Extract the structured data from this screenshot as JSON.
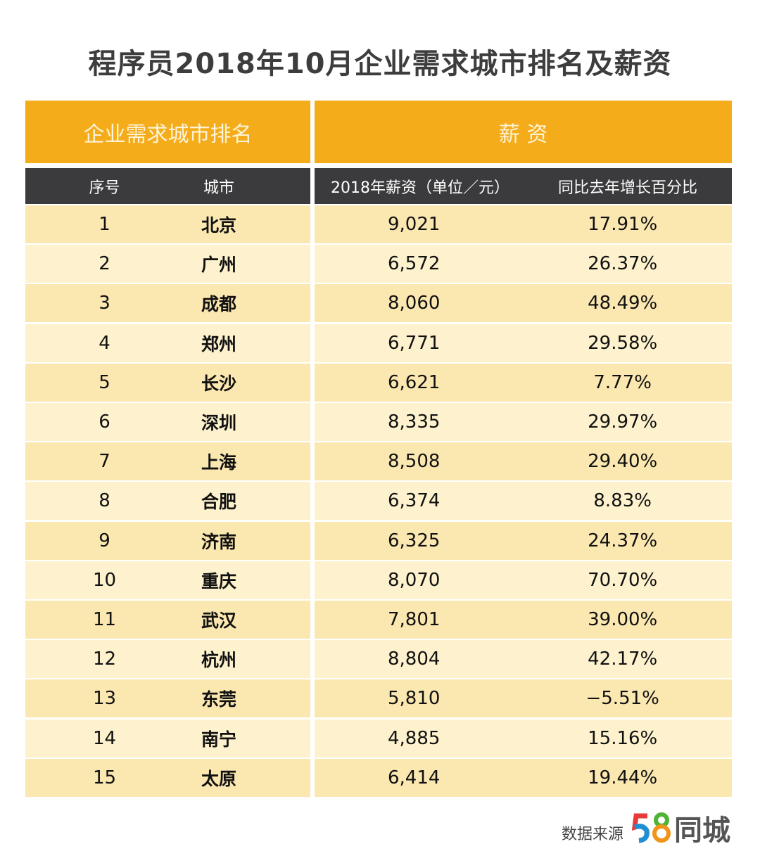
{
  "title": "程序员2018年10月企业需求城市排名及薪资",
  "group_headers": {
    "left": "企业需求城市排名",
    "right": "薪 资"
  },
  "columns": [
    "序号",
    "城市",
    "2018年薪资（单位／元）",
    "同比去年增长百分比"
  ],
  "rows": [
    [
      "1",
      "北京",
      "9,021",
      "17.91%"
    ],
    [
      "2",
      "广州",
      "6,572",
      "26.37%"
    ],
    [
      "3",
      "成都",
      "8,060",
      "48.49%"
    ],
    [
      "4",
      "郑州",
      "6,771",
      "29.58%"
    ],
    [
      "5",
      "长沙",
      "6,621",
      "7.77%"
    ],
    [
      "6",
      "深圳",
      "8,335",
      "29.97%"
    ],
    [
      "7",
      "上海",
      "8,508",
      "29.40%"
    ],
    [
      "8",
      "合肥",
      "6,374",
      "8.83%"
    ],
    [
      "9",
      "济南",
      "6,325",
      "24.37%"
    ],
    [
      "10",
      "重庆",
      "8,070",
      "70.70%"
    ],
    [
      "11",
      "武汉",
      "7,801",
      "39.00%"
    ],
    [
      "12",
      "杭州",
      "8,804",
      "42.17%"
    ],
    [
      "13",
      "东莞",
      "5,810",
      "−5.51%"
    ],
    [
      "14",
      "南宁",
      "4,885",
      "15.16%"
    ],
    [
      "15",
      "太原",
      "6,414",
      "19.44%"
    ]
  ],
  "footer": {
    "source_label": "数据来源",
    "logo_text": "58同城",
    "logo_num": "58",
    "logo_name": "同城"
  },
  "colors": {
    "orange": "#f5ac1b",
    "dark": "#3b3a3c",
    "row_a": "#fbe7b0",
    "row_b": "#fdf2cd"
  }
}
